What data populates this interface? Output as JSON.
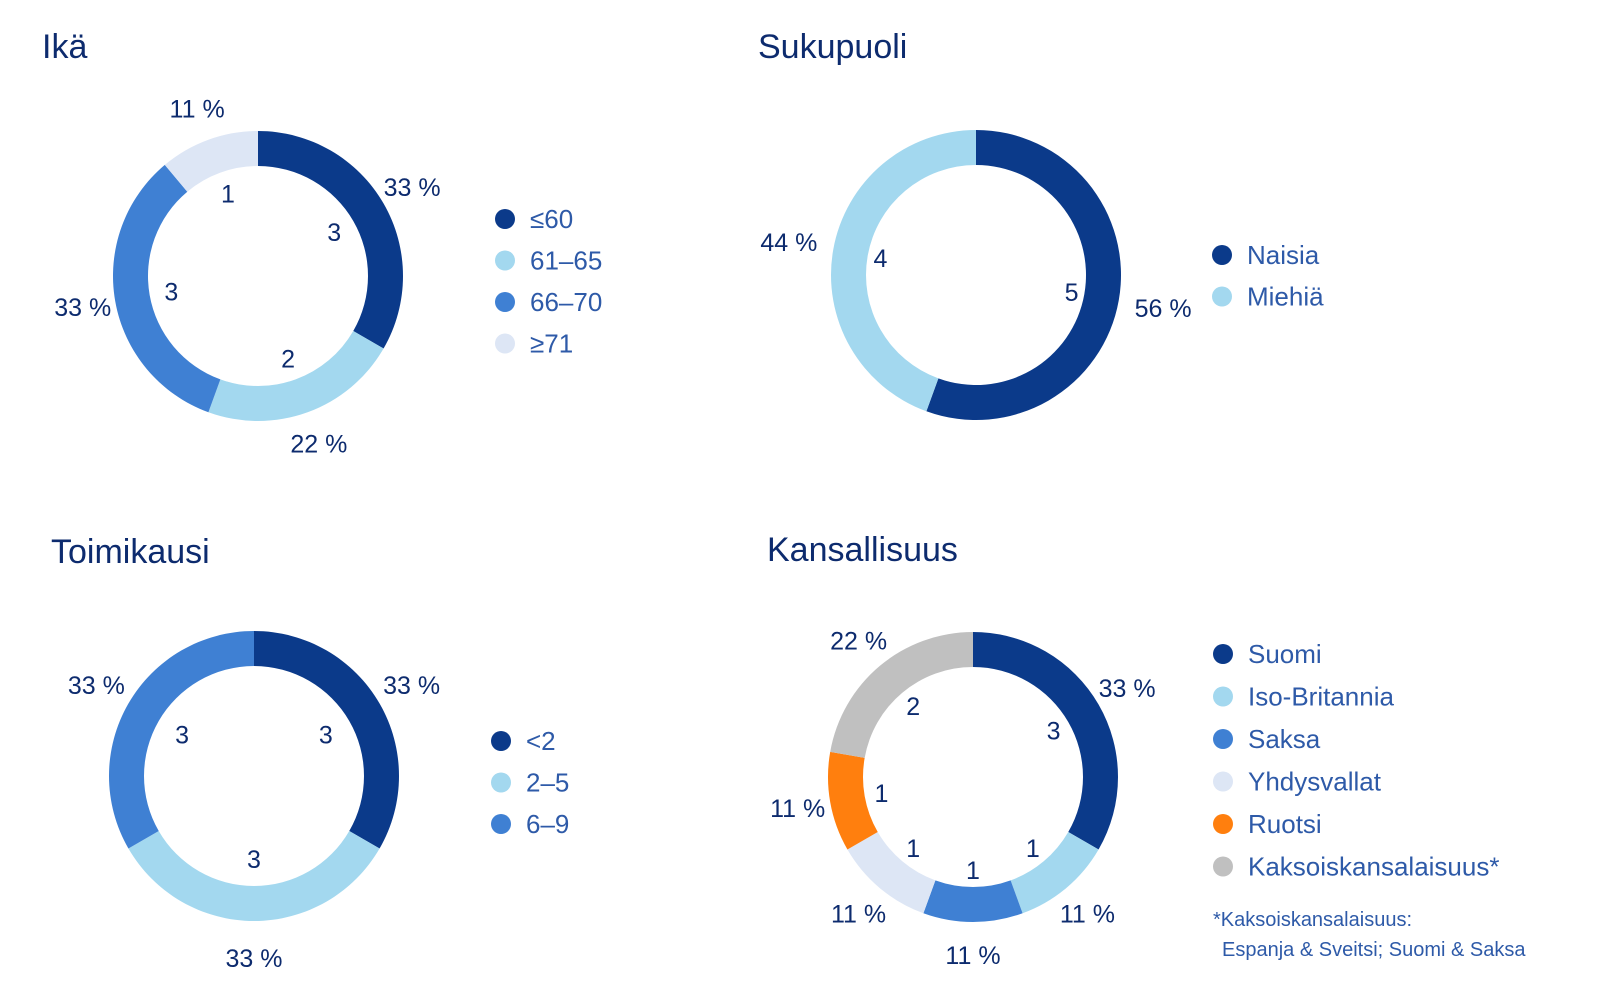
{
  "chart_data": [
    {
      "type": "pie",
      "variant": "donut",
      "title": "Ikä",
      "categories": [
        "≤60",
        "61–65",
        "66–70",
        "≥71"
      ],
      "values": [
        3,
        2,
        3,
        1
      ],
      "percent_labels": [
        "33 %",
        "22 %",
        "33 %",
        "11 %"
      ],
      "colors": [
        "#0b3a8a",
        "#a3d8ef",
        "#3f80d3",
        "#dde6f5"
      ],
      "legend": "right"
    },
    {
      "type": "pie",
      "variant": "donut",
      "title": "Sukupuoli",
      "categories": [
        "Naisia",
        "Miehiä"
      ],
      "values": [
        5,
        4
      ],
      "percent_labels": [
        "56 %",
        "44 %"
      ],
      "colors": [
        "#0b3a8a",
        "#a3d8ef"
      ],
      "legend": "right"
    },
    {
      "type": "pie",
      "variant": "donut",
      "title": "Toimikausi",
      "categories": [
        "<2",
        "2–5",
        "6–9"
      ],
      "values": [
        3,
        3,
        3
      ],
      "percent_labels": [
        "33 %",
        "33 %",
        "33 %"
      ],
      "colors": [
        "#0b3a8a",
        "#a3d8ef",
        "#3f80d3"
      ],
      "legend": "right"
    },
    {
      "type": "pie",
      "variant": "donut",
      "title": "Kansallisuus",
      "categories": [
        "Suomi",
        "Iso-Britannia",
        "Saksa",
        "Yhdysvallat",
        "Ruotsi",
        "Kaksoiskansalaisuus*"
      ],
      "values": [
        3,
        1,
        1,
        1,
        1,
        2
      ],
      "percent_labels": [
        "33 %",
        "11 %",
        "11 %",
        "11 %",
        "11 %",
        "22 %"
      ],
      "colors": [
        "#0b3a8a",
        "#a3d8ef",
        "#3f80d3",
        "#dde6f5",
        "#ff7f0e",
        "#c0c0c0"
      ],
      "legend": "right",
      "footnote": [
        "*Kaksoiskansalaisuus:",
        "Espanja & Sveitsi; Suomi & Saksa"
      ]
    }
  ]
}
